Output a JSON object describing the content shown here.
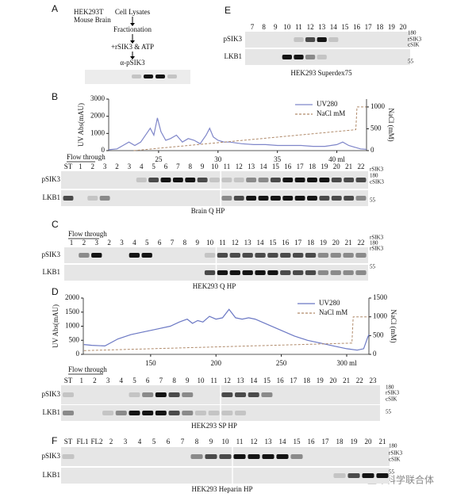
{
  "panel_a": {
    "label": "A",
    "sample": [
      "HEK293T",
      "Mouse Brain"
    ],
    "steps": [
      "Cell Lysates",
      "Fractionation",
      "+rSIK3 & ATP",
      "α-pSIK3"
    ]
  },
  "panel_e": {
    "label": "E",
    "lanes": [
      "7",
      "8",
      "9",
      "10",
      "11",
      "12",
      "13",
      "14",
      "15",
      "16",
      "17",
      "18",
      "19",
      "20"
    ],
    "rows": [
      "pSIK3",
      "LKB1"
    ],
    "markers": [
      "180",
      "rSIK3",
      "cSIK",
      "55"
    ],
    "caption": "HEK293 Superdex75"
  },
  "panel_b": {
    "label": "B",
    "flow_through": "Flow through",
    "lanes": [
      "ST",
      "1",
      "2",
      "3",
      "2",
      "3",
      "4",
      "5",
      "6",
      "7",
      "8",
      "9",
      "10",
      "11",
      "12",
      "13",
      "14",
      "15",
      "16",
      "17",
      "18",
      "19",
      "20",
      "21",
      "22"
    ],
    "rows": [
      "pSIK3",
      "LKB1"
    ],
    "markers": [
      "rSIK3",
      "180",
      "cSIK3",
      "55"
    ],
    "caption": "Brain  Q HP"
  },
  "panel_c": {
    "label": "C",
    "flow_through": "Flow through",
    "lanes": [
      "1",
      "2",
      "3",
      "2",
      "3",
      "4",
      "5",
      "6",
      "7",
      "8",
      "9",
      "10",
      "11",
      "12",
      "13",
      "14",
      "15",
      "16",
      "17",
      "18",
      "19",
      "20",
      "21",
      "22"
    ],
    "rows": [
      "pSIK3",
      "LKB1"
    ],
    "markers": [
      "rSIK3",
      "180",
      "rSIK3",
      "55"
    ],
    "caption": "HEK293 Q HP"
  },
  "panel_d": {
    "label": "D",
    "flow_through": "Flow through",
    "lanes": [
      "ST",
      "1",
      "2",
      "3",
      "4",
      "5",
      "6",
      "7",
      "8",
      "9",
      "10",
      "11",
      "12",
      "13",
      "14",
      "15",
      "16",
      "17",
      "18",
      "19",
      "20",
      "21",
      "22",
      "23"
    ],
    "rows": [
      "pSIK3",
      "LKB1"
    ],
    "markers": [
      "180",
      "rSIK3",
      "cSIK",
      "55"
    ],
    "caption": "HEK293 SP HP"
  },
  "panel_f": {
    "label": "F",
    "lanes": [
      "ST",
      "FL1",
      "FL2",
      "2",
      "3",
      "4",
      "5",
      "6",
      "7",
      "8",
      "9",
      "10",
      "11",
      "12",
      "13",
      "14",
      "15",
      "16",
      "17",
      "18",
      "19",
      "20",
      "21"
    ],
    "rows": [
      "pSIK3",
      "LKB1"
    ],
    "markers": [
      "180",
      "rSIK3",
      "cSIK",
      "55"
    ],
    "caption": "HEK293 Heparin  HP"
  },
  "watermark": "生命科学联合体",
  "chart_data": [
    {
      "type": "line",
      "y_label": "UV Abs(mAU)",
      "y2_label": "NaCl (mM)",
      "legend": "upper right",
      "xlim": [
        20.8,
        42.5
      ],
      "xticks": [
        25,
        30,
        35,
        {
          "value": 40,
          "label": "40 ml"
        }
      ],
      "ylim": [
        0,
        3000
      ],
      "yticks": [
        0,
        1000,
        2000,
        3000
      ],
      "y2lim": [
        0,
        1180
      ],
      "y2ticks": [
        0,
        500,
        1000
      ],
      "series": [
        {
          "name": "UV280",
          "color": "#7f86c9",
          "dashed": false,
          "x": [
            20.8,
            21.5,
            22,
            22.5,
            23,
            23.5,
            24,
            24.3,
            24.6,
            24.9,
            25.2,
            25.6,
            26,
            26.5,
            27,
            27.5,
            28,
            28.5,
            29,
            29.3,
            29.6,
            30,
            30.5,
            31,
            32,
            33,
            34,
            35,
            36,
            37,
            38,
            39,
            40,
            40.5,
            41,
            41.5,
            42,
            42.5
          ],
          "values": [
            50,
            100,
            300,
            500,
            300,
            500,
            1000,
            1300,
            900,
            1900,
            1100,
            600,
            700,
            900,
            500,
            700,
            600,
            400,
            900,
            1300,
            800,
            600,
            500,
            500,
            400,
            350,
            350,
            300,
            300,
            300,
            250,
            250,
            350,
            500,
            300,
            200,
            100,
            80
          ]
        },
        {
          "name": "NaCl mM",
          "color": "#b08a6a",
          "dashed": true,
          "axis": "y2",
          "x": [
            22.9,
            41.6,
            41.7,
            42.5
          ],
          "values": [
            0,
            480,
            1000,
            1000
          ]
        }
      ]
    },
    {
      "type": "line",
      "y_label": "UV Abs(mAU)",
      "y2_label": "NaCl (mM)",
      "legend": "upper right",
      "xlim": [
        98.5,
        317
      ],
      "xticks": [
        150,
        200,
        250,
        {
          "value": 300,
          "label": "300 ml"
        }
      ],
      "ylim": [
        0,
        2000
      ],
      "yticks": [
        0,
        500,
        1000,
        1500,
        2000
      ],
      "y2lim": [
        0,
        1500
      ],
      "y2ticks": [
        0,
        500,
        1000,
        1500
      ],
      "series": [
        {
          "name": "UV280",
          "color": "#6b78c4",
          "dashed": false,
          "x": [
            99,
            105,
            115,
            125,
            135,
            145,
            155,
            165,
            172,
            178,
            182,
            186,
            190,
            195,
            200,
            205,
            210,
            215,
            220,
            225,
            230,
            240,
            250,
            260,
            270,
            280,
            290,
            300,
            308,
            313,
            316,
            317
          ],
          "values": [
            350,
            320,
            300,
            550,
            700,
            800,
            900,
            1000,
            1150,
            1250,
            1100,
            1200,
            1150,
            1350,
            1250,
            1300,
            1600,
            1300,
            1250,
            1300,
            1250,
            1050,
            850,
            650,
            500,
            400,
            300,
            200,
            150,
            200,
            600,
            700
          ]
        },
        {
          "name": "NaCl mM",
          "color": "#b08a6a",
          "dashed": true,
          "axis": "y2",
          "x": [
            99,
            304,
            305,
            317
          ],
          "values": [
            100,
            300,
            1000,
            1000
          ]
        }
      ]
    }
  ]
}
